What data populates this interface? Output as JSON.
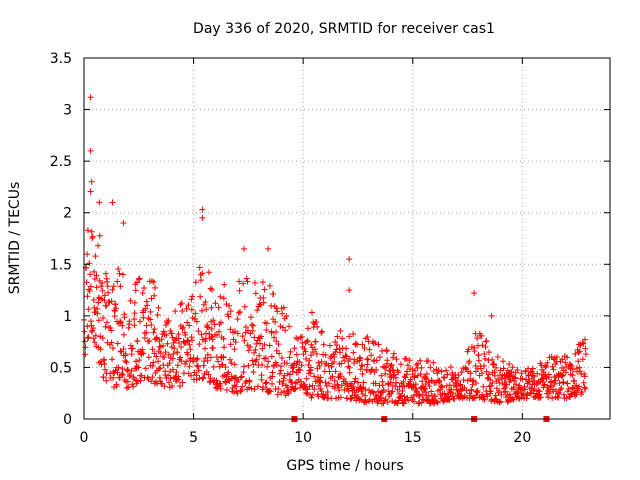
{
  "chart_data": {
    "type": "scatter",
    "title": "Day 336 of 2020, SRMTID for receiver cas1",
    "xlabel": "GPS time / hours",
    "ylabel": "SRMTID / TECUs",
    "xlim": [
      0,
      24
    ],
    "ylim": [
      0,
      3.5
    ],
    "xticks": [
      0,
      5,
      10,
      15,
      20
    ],
    "xtick_labels": [
      "0",
      "5",
      "10",
      "15",
      "20"
    ],
    "yticks": [
      0,
      0.5,
      1,
      1.5,
      2,
      2.5,
      3,
      3.5
    ],
    "ytick_labels": [
      "0",
      "0.5",
      "1",
      "1.5",
      "2",
      "2.5",
      "3",
      "3.5"
    ],
    "grid": true,
    "marker": "+",
    "series_color": "#ff0000",
    "gap_marker_x": [
      9.6,
      13.7,
      17.8,
      21.1
    ],
    "envelope_x": [
      0,
      0.3,
      0.5,
      1,
      2,
      3,
      4,
      5,
      5.5,
      6,
      7,
      8,
      9,
      9.7,
      10,
      10.3,
      11,
      12,
      13,
      14,
      15,
      16,
      17,
      18,
      19,
      20,
      21,
      22,
      22.9
    ],
    "envelope_ymin": [
      0.5,
      0.9,
      0.6,
      0.3,
      0.3,
      0.35,
      0.3,
      0.35,
      0.4,
      0.3,
      0.25,
      0.3,
      0.2,
      0.3,
      0.3,
      0.2,
      0.2,
      0.2,
      0.15,
      0.15,
      0.15,
      0.15,
      0.2,
      0.2,
      0.15,
      0.2,
      0.2,
      0.2,
      0.25
    ],
    "envelope_ymax": [
      1.4,
      2.3,
      2.0,
      1.6,
      1.4,
      1.4,
      1.0,
      1.3,
      1.7,
      1.3,
      1.4,
      1.5,
      1.2,
      0.8,
      0.9,
      1.1,
      0.8,
      0.9,
      0.8,
      0.7,
      0.6,
      0.55,
      0.5,
      0.9,
      0.6,
      0.45,
      0.6,
      0.65,
      0.8
    ],
    "peaks": [
      {
        "x": 0.3,
        "y": 3.12
      },
      {
        "x": 0.3,
        "y": 2.6
      },
      {
        "x": 0.35,
        "y": 2.3
      },
      {
        "x": 0.7,
        "y": 2.1
      },
      {
        "x": 1.3,
        "y": 2.1
      },
      {
        "x": 1.8,
        "y": 1.9
      },
      {
        "x": 5.4,
        "y": 2.03
      },
      {
        "x": 5.4,
        "y": 1.95
      },
      {
        "x": 7.3,
        "y": 1.65
      },
      {
        "x": 8.4,
        "y": 1.65
      },
      {
        "x": 12.1,
        "y": 1.55
      },
      {
        "x": 12.1,
        "y": 1.25
      },
      {
        "x": 17.8,
        "y": 1.22
      },
      {
        "x": 18.6,
        "y": 1.0
      }
    ]
  }
}
